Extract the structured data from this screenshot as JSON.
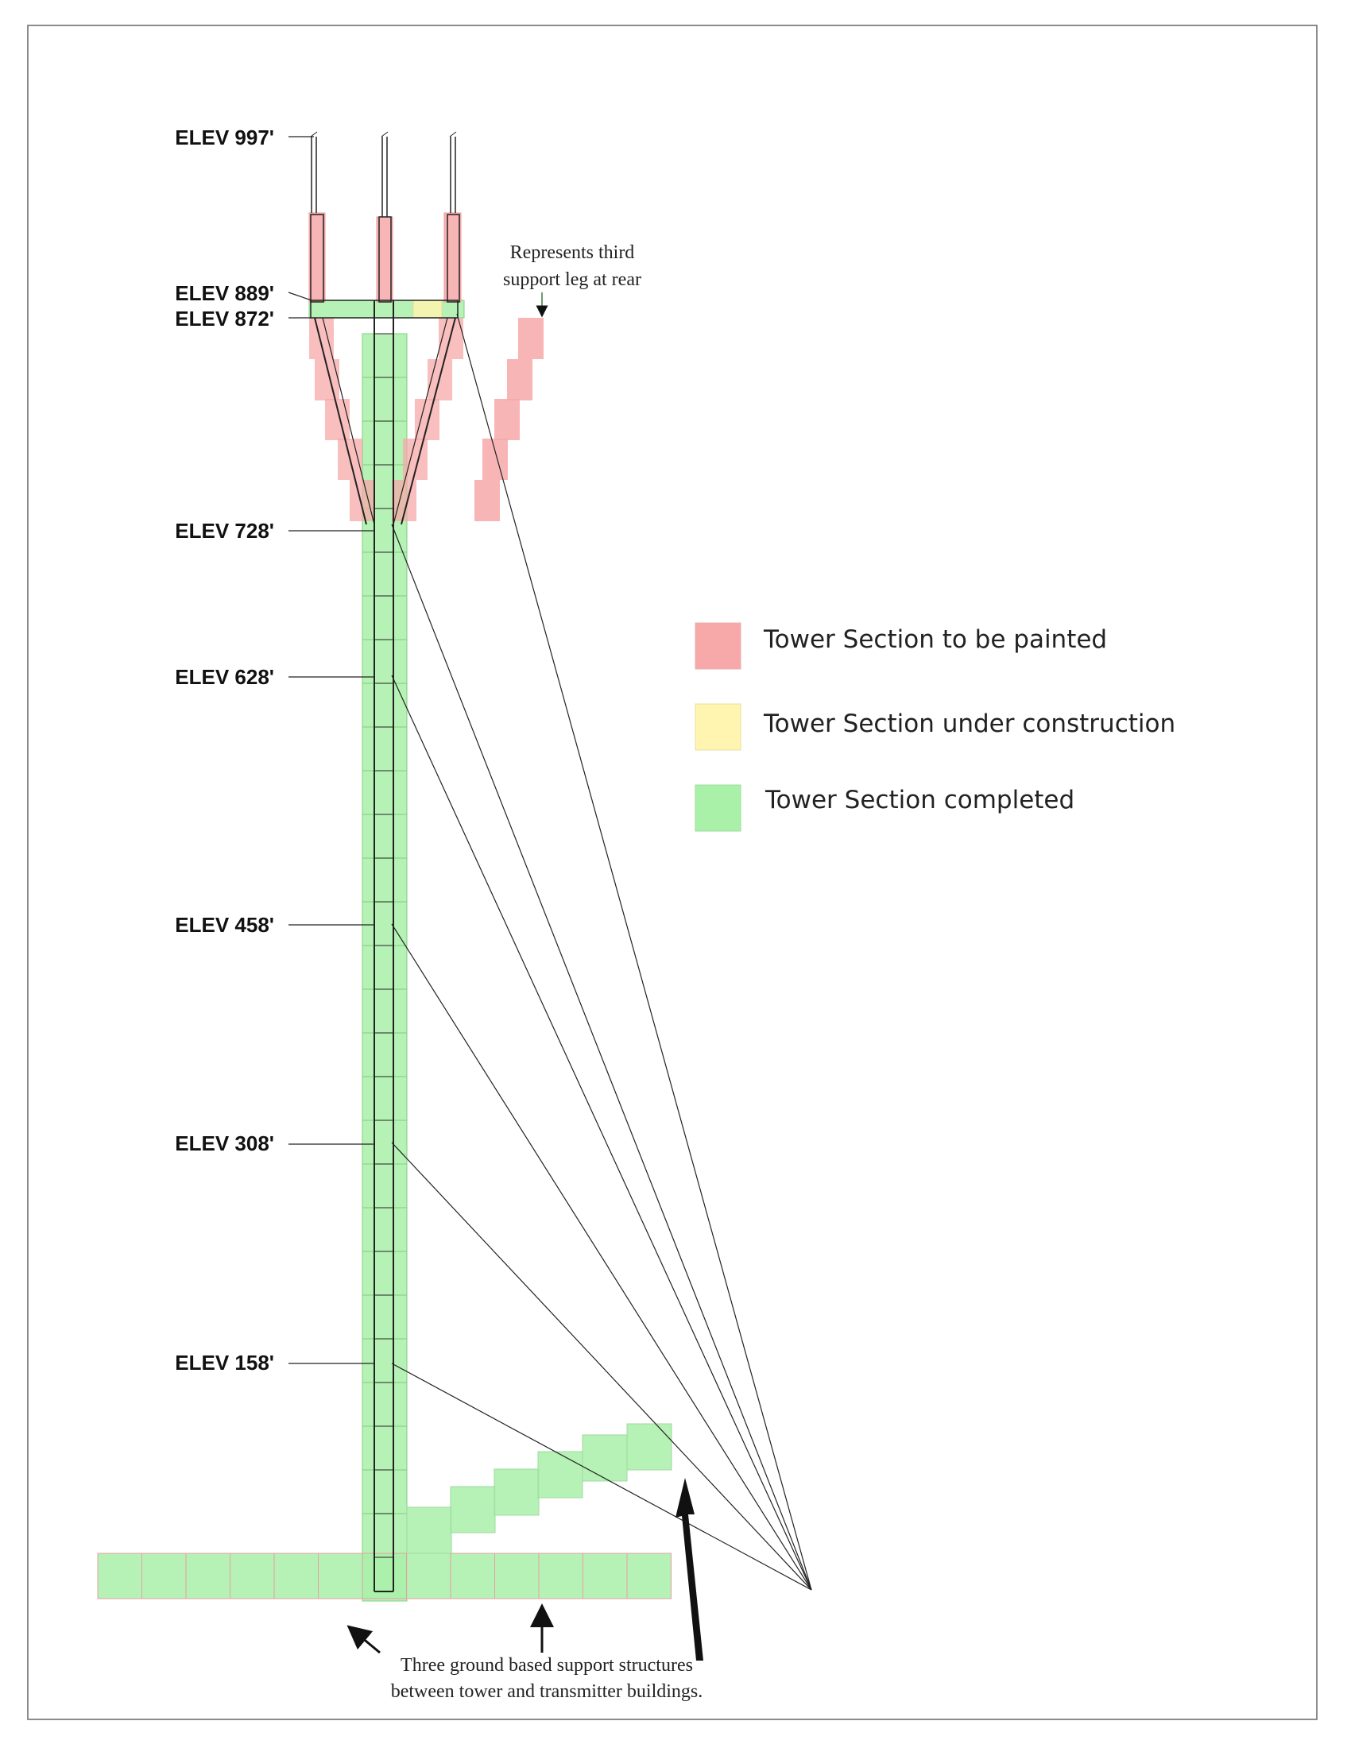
{
  "colors": {
    "painted": "#f7a8a8",
    "construction": "#fff5b0",
    "completed": "#a9f0a9",
    "line": "#222222"
  },
  "elevations": [
    {
      "label": "ELEV 997'"
    },
    {
      "label": "ELEV 889'"
    },
    {
      "label": "ELEV 872'"
    },
    {
      "label": "ELEV 728'"
    },
    {
      "label": "ELEV 628'"
    },
    {
      "label": "ELEV 458'"
    },
    {
      "label": "ELEV 308'"
    },
    {
      "label": "ELEV 158'"
    }
  ],
  "legend": [
    {
      "key": "painted",
      "label": "Tower Section to be painted"
    },
    {
      "key": "construction",
      "label": "Tower Section under construction"
    },
    {
      "key": "completed",
      "label": "Tower Section completed"
    }
  ],
  "notes": {
    "rear_leg_line1": "Represents third",
    "rear_leg_line2": "support leg at rear",
    "ground_line1": "Three ground based support structures",
    "ground_line2": "between tower and transmitter buildings."
  }
}
